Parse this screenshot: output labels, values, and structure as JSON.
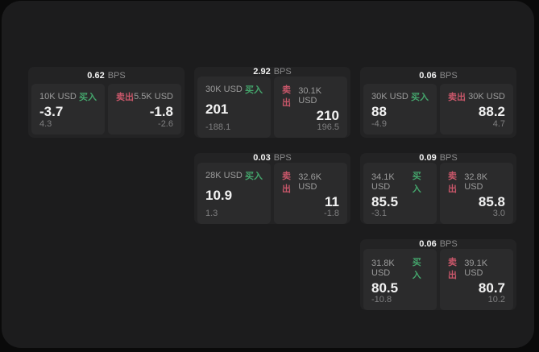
{
  "colors": {
    "page_bg": "#0a0a0a",
    "window_bg": "#1c1c1d",
    "card_bg": "#232324",
    "tile_bg": "#2b2b2c",
    "text_primary": "#f2f2f2",
    "text_muted": "#9c9c9c",
    "text_dim": "#7f7f80",
    "buy_green": "#44a56c",
    "sell_red": "#c9576a"
  },
  "labels": {
    "bps_suffix": "BPS",
    "buy": "买入",
    "sell": "卖出"
  },
  "cards": [
    {
      "col": 1,
      "row": 1,
      "bps": "0.62",
      "buy": {
        "amount": "10K USD",
        "value": "-3.7",
        "sub": "4.3"
      },
      "sell": {
        "amount": "5.5K USD",
        "value": "-1.8",
        "sub": "-2.6"
      }
    },
    {
      "col": 2,
      "row": 1,
      "bps": "2.92",
      "buy": {
        "amount": "30K USD",
        "value": "201",
        "sub": "-188.1"
      },
      "sell": {
        "amount": "30.1K USD",
        "value": "210",
        "sub": "196.5"
      }
    },
    {
      "col": 3,
      "row": 1,
      "bps": "0.06",
      "buy": {
        "amount": "30K USD",
        "value": "88",
        "sub": "-4.9"
      },
      "sell": {
        "amount": "30K USD",
        "value": "88.2",
        "sub": "4.7"
      }
    },
    {
      "col": 2,
      "row": 2,
      "bps": "0.03",
      "buy": {
        "amount": "28K USD",
        "value": "10.9",
        "sub": "1.3"
      },
      "sell": {
        "amount": "32.6K USD",
        "value": "11",
        "sub": "-1.8"
      }
    },
    {
      "col": 3,
      "row": 2,
      "bps": "0.09",
      "buy": {
        "amount": "34.1K USD",
        "value": "85.5",
        "sub": "-3.1"
      },
      "sell": {
        "amount": "32.8K USD",
        "value": "85.8",
        "sub": "3.0"
      }
    },
    {
      "col": 3,
      "row": 3,
      "bps": "0.06",
      "buy": {
        "amount": "31.8K USD",
        "value": "80.5",
        "sub": "-10.8"
      },
      "sell": {
        "amount": "39.1K USD",
        "value": "80.7",
        "sub": "10.2"
      }
    }
  ]
}
